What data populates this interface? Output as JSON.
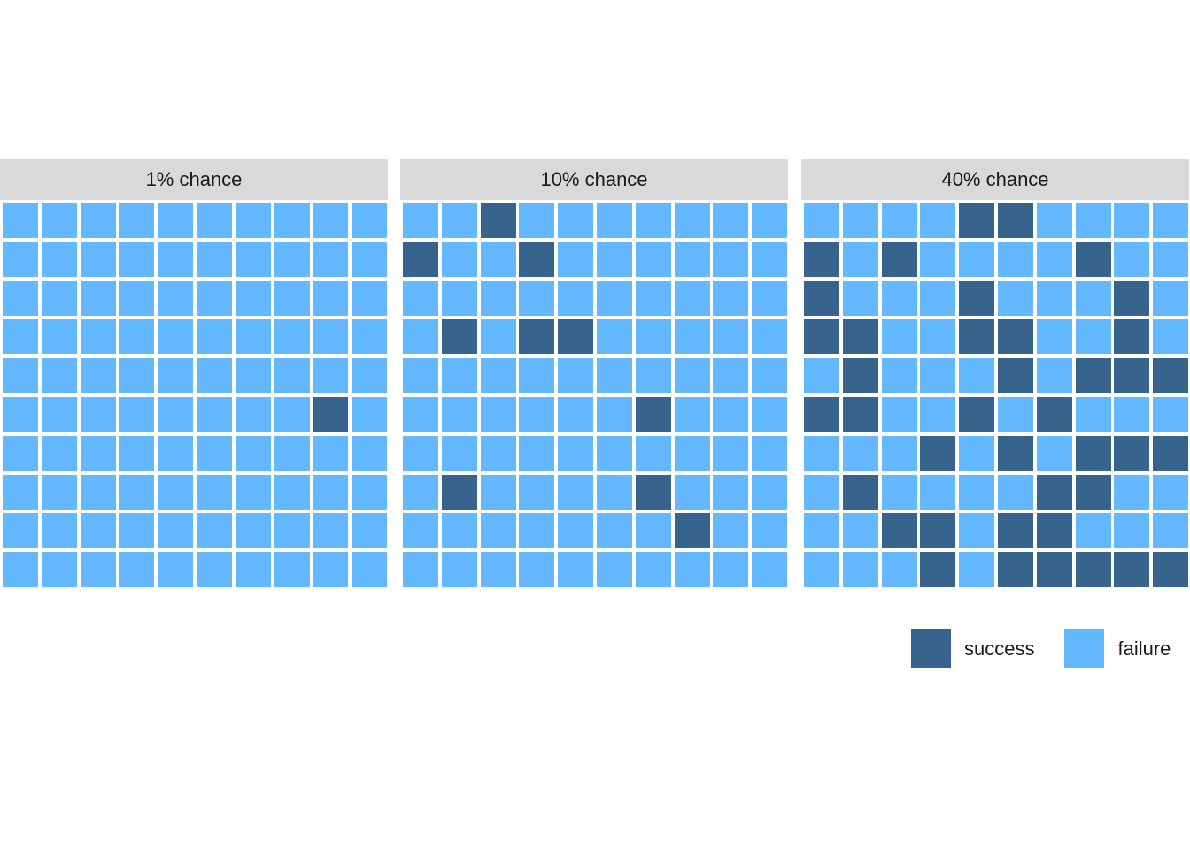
{
  "chart_data": {
    "type": "waffle",
    "grid": {
      "rows": 10,
      "cols": 10
    },
    "categories": [
      "success",
      "failure"
    ],
    "colors": {
      "success": "#37648c",
      "failure": "#63b8ff"
    },
    "legend_position": "bottom-right",
    "legend": [
      {
        "label": "success",
        "color": "#37648c"
      },
      {
        "label": "failure",
        "color": "#63b8ff"
      }
    ],
    "panels": [
      {
        "title": "1% chance",
        "success_count": 1,
        "success_cells": [
          [
            6,
            9
          ]
        ]
      },
      {
        "title": "10% chance",
        "success_count": 10,
        "success_cells": [
          [
            1,
            3
          ],
          [
            2,
            1
          ],
          [
            2,
            4
          ],
          [
            4,
            2
          ],
          [
            4,
            4
          ],
          [
            4,
            5
          ],
          [
            6,
            7
          ],
          [
            8,
            2
          ],
          [
            8,
            7
          ],
          [
            9,
            8
          ]
        ]
      },
      {
        "title": "40% chance",
        "success_count": 40,
        "success_cells": [
          [
            1,
            5
          ],
          [
            1,
            6
          ],
          [
            2,
            1
          ],
          [
            2,
            3
          ],
          [
            2,
            8
          ],
          [
            3,
            1
          ],
          [
            3,
            5
          ],
          [
            3,
            9
          ],
          [
            4,
            1
          ],
          [
            4,
            2
          ],
          [
            4,
            5
          ],
          [
            4,
            6
          ],
          [
            4,
            9
          ],
          [
            5,
            2
          ],
          [
            5,
            6
          ],
          [
            5,
            8
          ],
          [
            5,
            9
          ],
          [
            5,
            10
          ],
          [
            6,
            1
          ],
          [
            6,
            2
          ],
          [
            6,
            5
          ],
          [
            6,
            7
          ],
          [
            7,
            4
          ],
          [
            7,
            6
          ],
          [
            7,
            8
          ],
          [
            7,
            9
          ],
          [
            7,
            10
          ],
          [
            8,
            2
          ],
          [
            8,
            7
          ],
          [
            8,
            8
          ],
          [
            9,
            3
          ],
          [
            9,
            4
          ],
          [
            9,
            6
          ],
          [
            9,
            7
          ],
          [
            10,
            4
          ],
          [
            10,
            6
          ],
          [
            10,
            7
          ],
          [
            10,
            8
          ],
          [
            10,
            9
          ],
          [
            10,
            10
          ]
        ]
      }
    ]
  }
}
